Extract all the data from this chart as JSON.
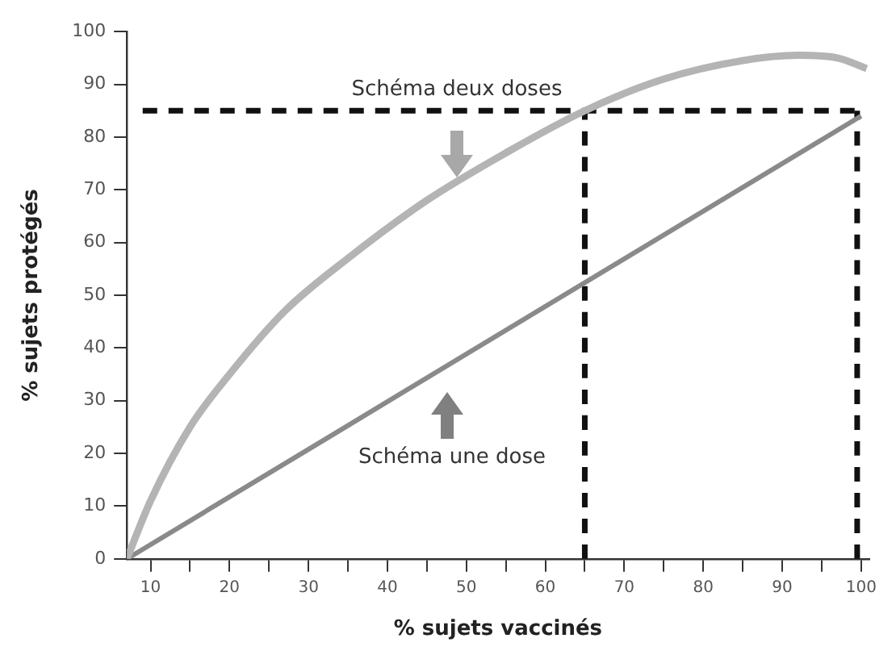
{
  "chart_data": {
    "type": "line",
    "xlabel": "% sujets vaccinés",
    "ylabel": "% sujets protégés",
    "xlim": [
      7,
      101
    ],
    "ylim": [
      0,
      100
    ],
    "xticks": [
      10,
      {
        "value": 15,
        "label": null
      },
      20,
      {
        "value": 25,
        "label": null
      },
      30,
      {
        "value": 35,
        "label": null
      },
      40,
      {
        "value": 45,
        "label": null
      },
      50,
      {
        "value": 55,
        "label": null
      },
      60,
      {
        "value": 65,
        "label": null
      },
      70,
      {
        "value": 75,
        "label": null
      },
      80,
      {
        "value": 85,
        "label": null
      },
      90,
      {
        "value": 95,
        "label": null
      },
      100
    ],
    "yticks": [
      0,
      10,
      20,
      30,
      40,
      50,
      60,
      70,
      80,
      90,
      100
    ],
    "grid": false,
    "legend": false,
    "marker": "none",
    "series": [
      {
        "color": "#b4b4b4",
        "line_style": "solid",
        "x": [
          7,
          10,
          15,
          20,
          27,
          35,
          45,
          55,
          65,
          75,
          85,
          92,
          97,
          100.7
        ],
        "values": [
          0,
          11,
          25,
          35,
          47,
          57,
          68,
          77,
          85,
          91,
          94.5,
          95.5,
          95,
          93
        ]
      },
      {
        "color": "#8a8a8a",
        "line_style": "solid",
        "x": [
          7,
          100
        ],
        "values": [
          0,
          84
        ]
      },
      {
        "color": "#111111",
        "line_style": "dashed",
        "x": [
          9,
          100
        ],
        "values": [
          85,
          85
        ]
      },
      {
        "color": "#111111",
        "line_style": "dashed",
        "x": [
          65,
          65
        ],
        "values": [
          0,
          85
        ]
      },
      {
        "color": "#111111",
        "line_style": "dashed",
        "x": [
          99.5,
          99.5
        ],
        "values": [
          0,
          85
        ]
      }
    ],
    "annotations": [
      "Schéma deux doses",
      "Schéma une dose"
    ]
  }
}
